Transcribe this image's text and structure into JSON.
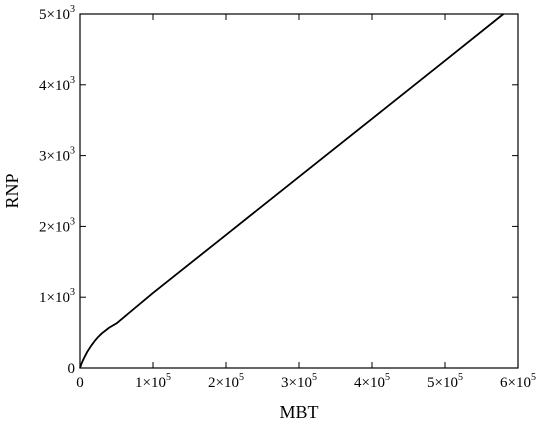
{
  "chart_data": {
    "type": "line",
    "title": "",
    "xlabel": "MBT",
    "ylabel": "RNP",
    "xlim": [
      0,
      600000
    ],
    "ylim": [
      0,
      5000
    ],
    "grid": false,
    "legend": "none",
    "x_ticks": [
      {
        "value": 0,
        "mantissa": "0",
        "exp": ""
      },
      {
        "value": 100000,
        "mantissa": "1×10",
        "exp": "5"
      },
      {
        "value": 200000,
        "mantissa": "2×10",
        "exp": "5"
      },
      {
        "value": 300000,
        "mantissa": "3×10",
        "exp": "5"
      },
      {
        "value": 400000,
        "mantissa": "4×10",
        "exp": "5"
      },
      {
        "value": 500000,
        "mantissa": "5×10",
        "exp": "5"
      },
      {
        "value": 600000,
        "mantissa": "6×10",
        "exp": "5"
      }
    ],
    "y_ticks": [
      {
        "value": 0,
        "mantissa": "0",
        "exp": ""
      },
      {
        "value": 1000,
        "mantissa": "1×10",
        "exp": "3"
      },
      {
        "value": 2000,
        "mantissa": "2×10",
        "exp": "3"
      },
      {
        "value": 3000,
        "mantissa": "3×10",
        "exp": "3"
      },
      {
        "value": 4000,
        "mantissa": "4×10",
        "exp": "3"
      },
      {
        "value": 5000,
        "mantissa": "5×10",
        "exp": "3"
      }
    ],
    "series": [
      {
        "color": "#000000",
        "x": [
          0,
          2000,
          5000,
          10000,
          15000,
          20000,
          25000,
          30000,
          35000,
          40000,
          50000,
          100000,
          200000,
          300000,
          400000,
          500000,
          580000
        ],
        "y": [
          0,
          60,
          130,
          230,
          310,
          380,
          440,
          490,
          530,
          570,
          630,
          1060,
          1880,
          2700,
          3520,
          4340,
          5000
        ]
      }
    ]
  }
}
